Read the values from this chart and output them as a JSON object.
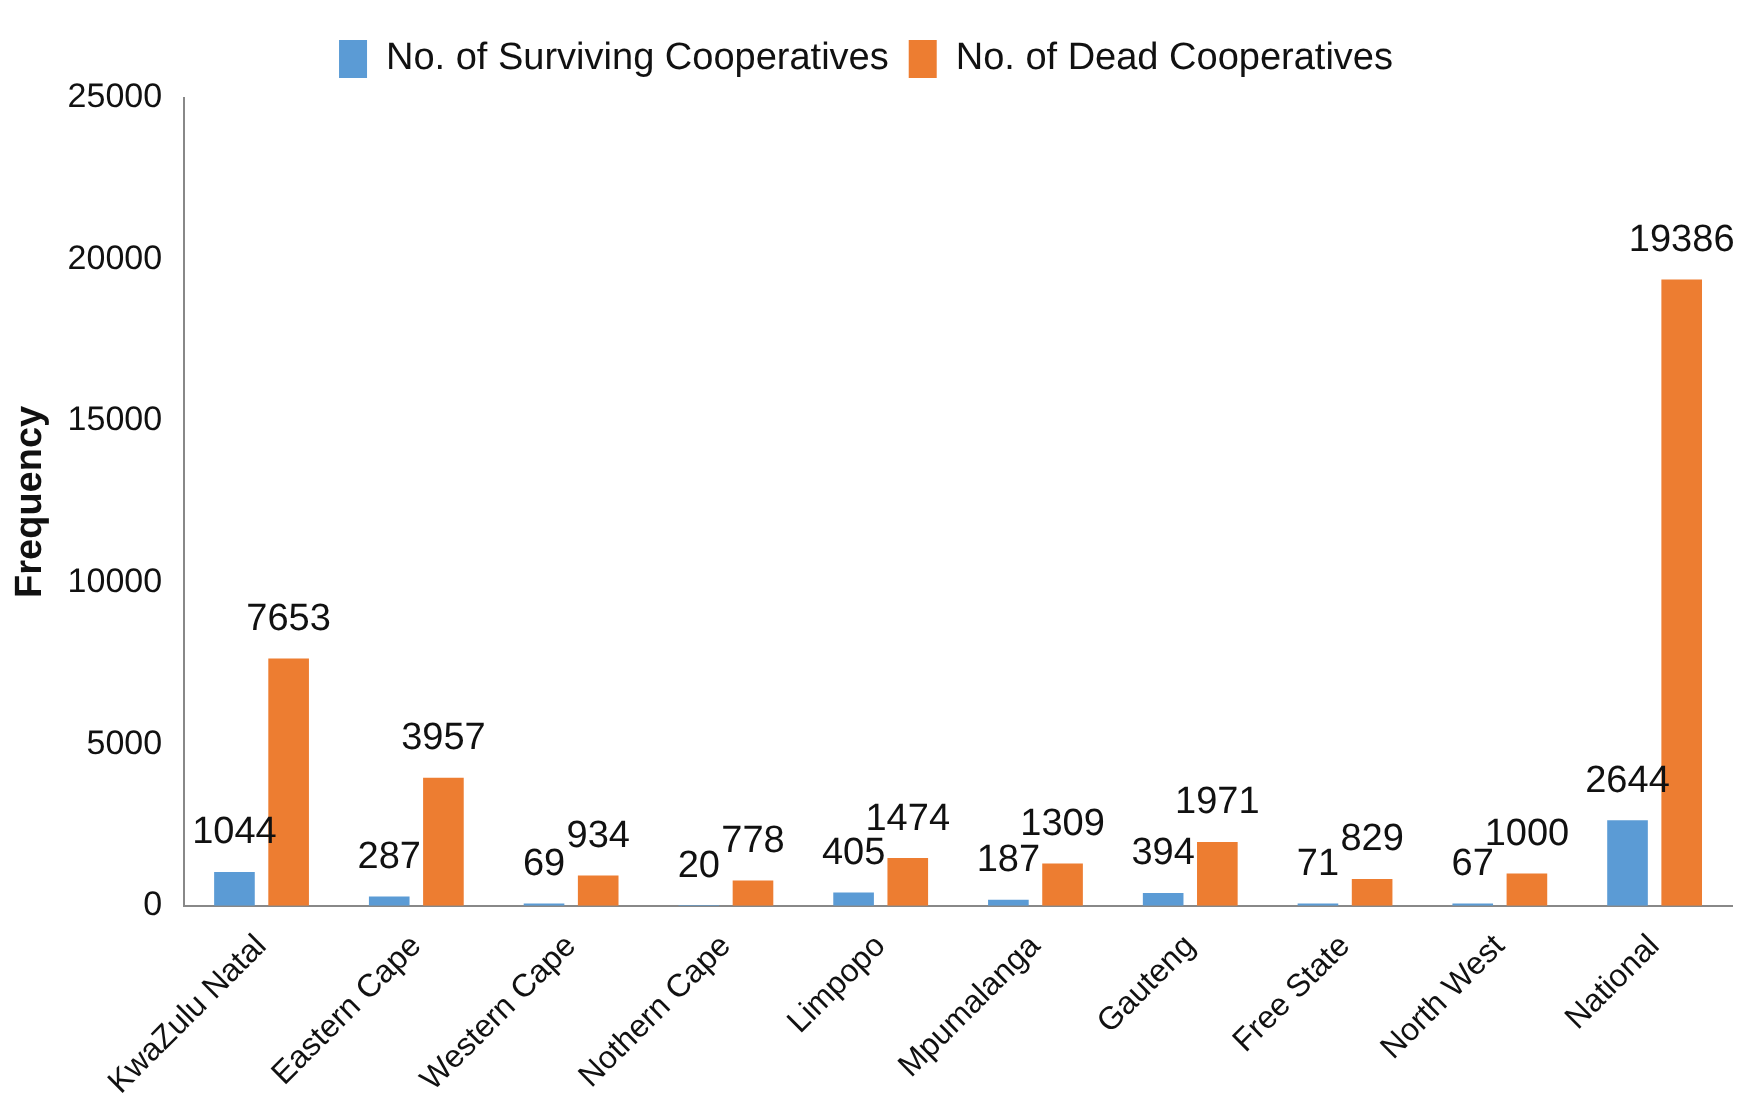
{
  "chart_data": {
    "type": "bar",
    "ylabel": "Frequency",
    "categories": [
      "KwaZulu Natal",
      "Eastern Cape",
      "Western Cape",
      "Nothern Cape",
      "Limpopo",
      "Mpumalanga",
      "Gauteng",
      "Free State",
      "North West",
      "National"
    ],
    "series": [
      {
        "name": "No. of Surviving Cooperatives",
        "color": "#5b9bd5",
        "values": [
          1044,
          287,
          69,
          20,
          405,
          187,
          394,
          71,
          67,
          2644
        ]
      },
      {
        "name": "No. of Dead Cooperatives",
        "color": "#ed7d31",
        "values": [
          7653,
          3957,
          934,
          778,
          1474,
          1309,
          1971,
          829,
          1000,
          19386
        ]
      }
    ],
    "ylim": [
      0,
      25000
    ],
    "yticks": [
      0,
      5000,
      10000,
      15000,
      20000,
      25000
    ],
    "grid": false,
    "legend": "top",
    "data_labels": true
  }
}
